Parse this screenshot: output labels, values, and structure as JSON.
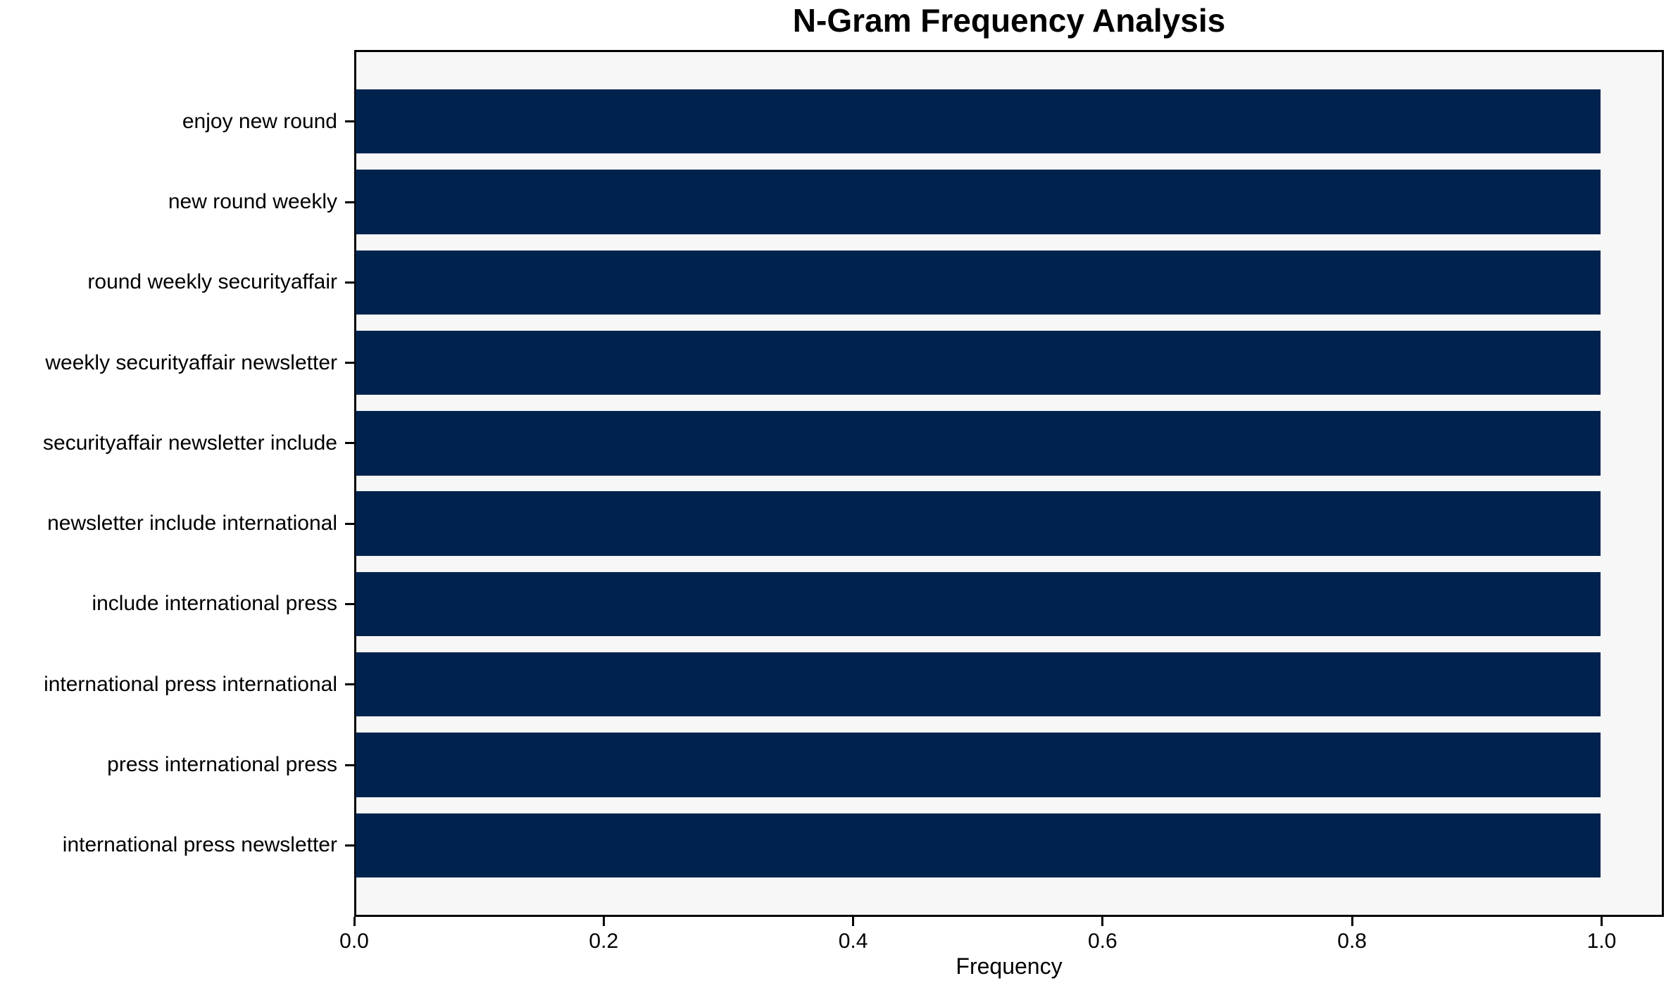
{
  "chart_data": {
    "type": "bar",
    "orientation": "horizontal",
    "title": "N-Gram Frequency Analysis",
    "xlabel": "Frequency",
    "ylabel": "",
    "categories": [
      "enjoy new round",
      "new round weekly",
      "round weekly securityaffair",
      "weekly securityaffair newsletter",
      "securityaffair newsletter include",
      "newsletter include international",
      "include international press",
      "international press international",
      "press international press",
      "international press newsletter"
    ],
    "values": [
      1.0,
      1.0,
      1.0,
      1.0,
      1.0,
      1.0,
      1.0,
      1.0,
      1.0,
      1.0
    ],
    "xlim": [
      0,
      1.05
    ],
    "xticks": [
      {
        "value": 0.0,
        "label": "0.0"
      },
      {
        "value": 0.2,
        "label": "0.2"
      },
      {
        "value": 0.4,
        "label": "0.4"
      },
      {
        "value": 0.6,
        "label": "0.6"
      },
      {
        "value": 0.8,
        "label": "0.8"
      },
      {
        "value": 1.0,
        "label": "1.0"
      }
    ],
    "grid": false,
    "legend": null,
    "colors": {
      "bar": "#00234e",
      "plot_background": "#f7f7f7",
      "spine": "#000000",
      "text": "#000000"
    }
  }
}
